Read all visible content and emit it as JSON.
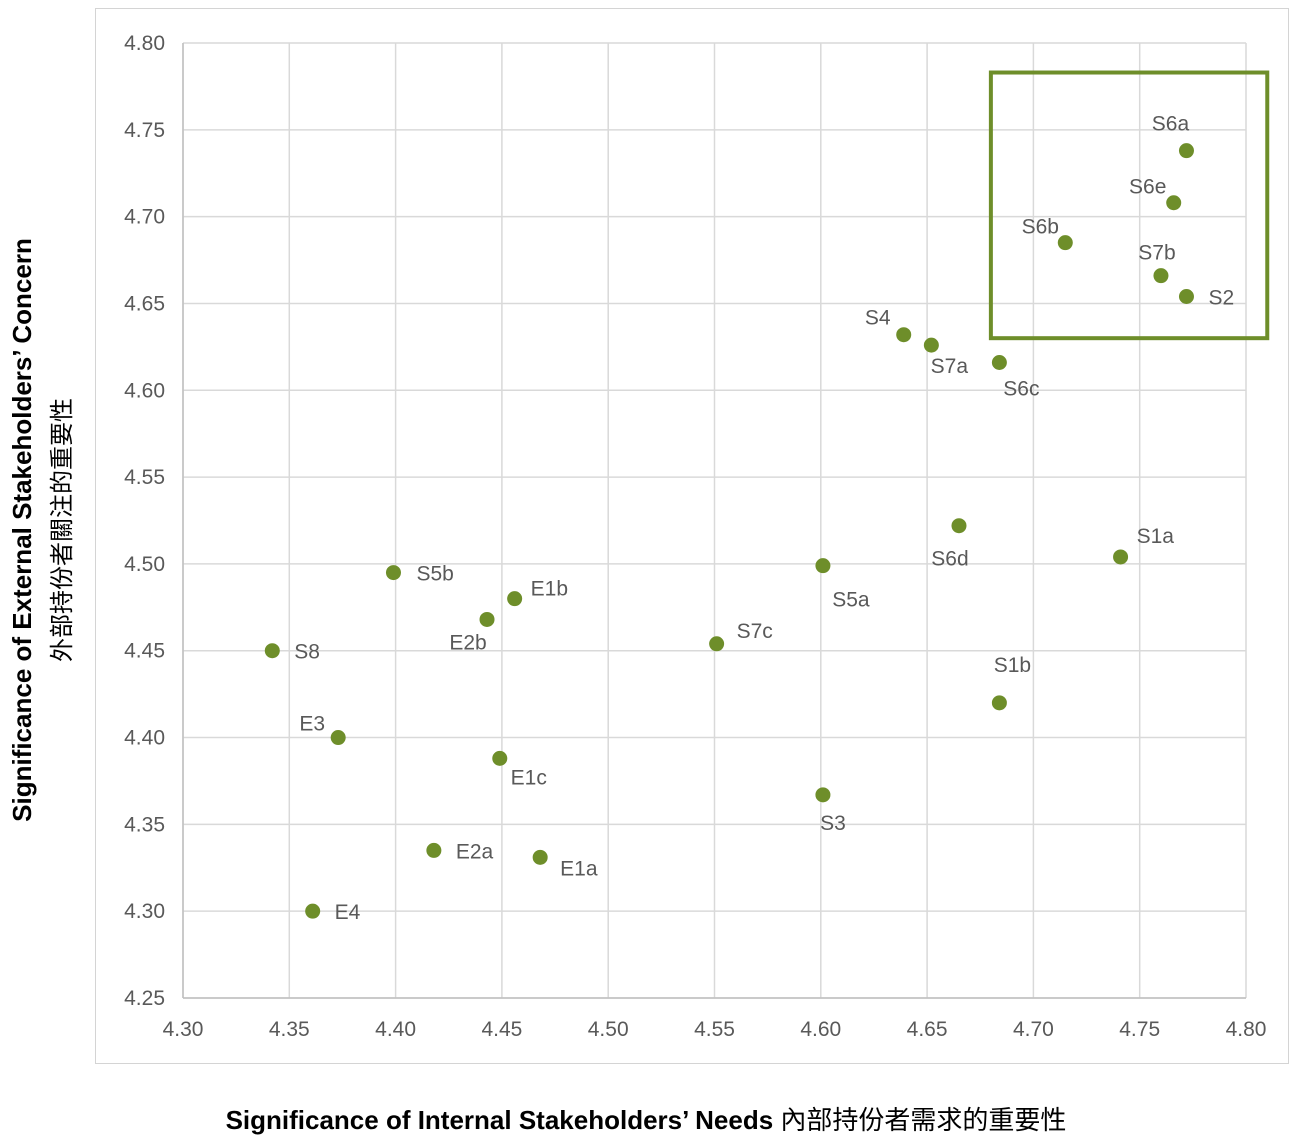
{
  "chart_data": {
    "type": "scatter",
    "title": "",
    "xlabel": "Significance of Internal Stakeholders’ Needs",
    "xlabel_cjk": "內部持份者需求的重要性",
    "ylabel": "Significance of External Stakeholders’ Concern",
    "ylabel_cjk": "外部持份者關注的重要性",
    "xlim": [
      4.3,
      4.8
    ],
    "ylim": [
      4.25,
      4.8
    ],
    "xticks": [
      "4.30",
      "4.35",
      "4.40",
      "4.45",
      "4.50",
      "4.55",
      "4.60",
      "4.65",
      "4.70",
      "4.75",
      "4.80"
    ],
    "yticks": [
      "4.25",
      "4.30",
      "4.35",
      "4.40",
      "4.45",
      "4.50",
      "4.55",
      "4.60",
      "4.65",
      "4.70",
      "4.75",
      "4.80"
    ],
    "grid": true,
    "marker_color": "#6e8e2a",
    "highlight_box": {
      "x_range": [
        4.68,
        4.81
      ],
      "y_range": [
        4.63,
        4.783
      ],
      "color": "#6e8e2a"
    },
    "points": [
      {
        "label": "S6a",
        "x": 4.772,
        "y": 4.738
      },
      {
        "label": "S6e",
        "x": 4.766,
        "y": 4.708
      },
      {
        "label": "S6b",
        "x": 4.715,
        "y": 4.685
      },
      {
        "label": "S7b",
        "x": 4.76,
        "y": 4.666
      },
      {
        "label": "S2",
        "x": 4.772,
        "y": 4.654
      },
      {
        "label": "S4",
        "x": 4.639,
        "y": 4.632
      },
      {
        "label": "S7a",
        "x": 4.652,
        "y": 4.626
      },
      {
        "label": "S6c",
        "x": 4.684,
        "y": 4.616
      },
      {
        "label": "S6d",
        "x": 4.665,
        "y": 4.522
      },
      {
        "label": "S1a",
        "x": 4.741,
        "y": 4.504
      },
      {
        "label": "S5a",
        "x": 4.601,
        "y": 4.499
      },
      {
        "label": "S5b",
        "x": 4.399,
        "y": 4.495
      },
      {
        "label": "E1b",
        "x": 4.456,
        "y": 4.48
      },
      {
        "label": "E2b",
        "x": 4.443,
        "y": 4.468
      },
      {
        "label": "S7c",
        "x": 4.551,
        "y": 4.454
      },
      {
        "label": "S8",
        "x": 4.342,
        "y": 4.45
      },
      {
        "label": "S1b",
        "x": 4.684,
        "y": 4.42
      },
      {
        "label": "E3",
        "x": 4.373,
        "y": 4.4
      },
      {
        "label": "E1c",
        "x": 4.449,
        "y": 4.388
      },
      {
        "label": "S3",
        "x": 4.601,
        "y": 4.367
      },
      {
        "label": "E2a",
        "x": 4.418,
        "y": 4.335
      },
      {
        "label": "E1a",
        "x": 4.468,
        "y": 4.331
      },
      {
        "label": "E4",
        "x": 4.361,
        "y": 4.3
      }
    ]
  }
}
